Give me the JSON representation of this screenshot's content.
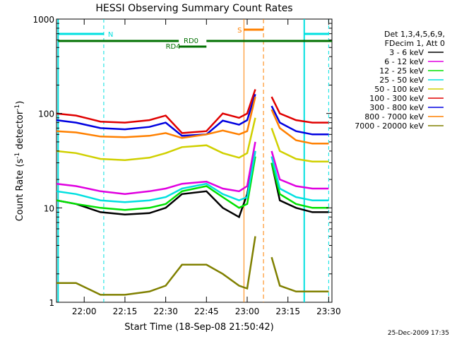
{
  "chart_data": {
    "type": "line",
    "title": "HESSI Observing Summary Count Rates",
    "xlabel": "Start Time (18-Sep-08 21:50:42)",
    "ylabel_main": "Count Rate (s",
    "ylabel_sup1": "-1",
    "ylabel_mid": " detector",
    "ylabel_sup2": "-1",
    "ylabel_end": ")",
    "yscale": "log",
    "ylim": [
      1,
      1000
    ],
    "xlim_minutes": [
      21.83,
      23.52
    ],
    "x_ticks": [
      "22:00",
      "22:15",
      "22:30",
      "22:45",
      "23:00",
      "23:15",
      "23:30"
    ],
    "x_tick_values_hours": [
      22.0,
      22.25,
      22.5,
      22.75,
      23.0,
      23.25,
      23.5
    ],
    "y_ticks": [
      "1",
      "10",
      "100",
      "1000"
    ],
    "y_tick_values": [
      1,
      10,
      100,
      1000
    ],
    "grid": false,
    "legend_position": "right",
    "legend_header": [
      "Det 1,3,4,5,6,9,",
      "FDecim 1, Att 0"
    ],
    "series": [
      {
        "name": "3 - 6 keV",
        "color": "#000000",
        "x": [
          21.83,
          21.95,
          22.1,
          22.25,
          22.4,
          22.5,
          22.6,
          22.75,
          22.85,
          22.95,
          23.0,
          23.05
        ],
        "values": [
          12,
          11,
          9,
          8.5,
          8.8,
          10,
          14,
          15,
          10,
          8,
          14,
          40
        ]
      },
      {
        "name": "6 - 12 keV",
        "color": "#e000e0",
        "x": [
          21.83,
          21.95,
          22.1,
          22.25,
          22.4,
          22.5,
          22.6,
          22.75,
          22.85,
          22.95,
          23.0,
          23.05
        ],
        "values": [
          18,
          17,
          15,
          14,
          15,
          16,
          18,
          19,
          16,
          15,
          17,
          50
        ]
      },
      {
        "name": "12 - 25 keV",
        "color": "#00e000",
        "x": [
          21.83,
          21.95,
          22.1,
          22.25,
          22.4,
          22.5,
          22.6,
          22.75,
          22.85,
          22.95,
          23.0,
          23.05
        ],
        "values": [
          12,
          11,
          10,
          9.5,
          10,
          11,
          15,
          17,
          13,
          10,
          11,
          35
        ]
      },
      {
        "name": "25 - 50 keV",
        "color": "#00e0e0",
        "x": [
          21.83,
          21.95,
          22.1,
          22.25,
          22.4,
          22.5,
          22.6,
          22.75,
          22.85,
          22.95,
          23.0,
          23.05
        ],
        "values": [
          15,
          14,
          12,
          11.5,
          12,
          13,
          16,
          18,
          14,
          12,
          13,
          40
        ]
      },
      {
        "name": "50 - 100 keV",
        "color": "#d0d000",
        "x": [
          21.83,
          21.95,
          22.1,
          22.25,
          22.4,
          22.5,
          22.6,
          22.75,
          22.85,
          22.95,
          23.0,
          23.05
        ],
        "values": [
          40,
          38,
          33,
          32,
          34,
          38,
          44,
          46,
          38,
          34,
          38,
          90
        ]
      },
      {
        "name": "100 - 300 keV",
        "color": "#e00000",
        "x": [
          21.83,
          21.95,
          22.1,
          22.25,
          22.4,
          22.5,
          22.6,
          22.75,
          22.85,
          22.95,
          23.0,
          23.05
        ],
        "values": [
          100,
          95,
          82,
          80,
          85,
          95,
          62,
          65,
          100,
          90,
          100,
          180
        ]
      },
      {
        "name": "300 - 800 keV",
        "color": "#0000e0",
        "x": [
          21.83,
          21.95,
          22.1,
          22.25,
          22.4,
          22.5,
          22.6,
          22.75,
          22.85,
          22.95,
          23.0,
          23.05
        ],
        "values": [
          85,
          80,
          70,
          68,
          72,
          80,
          58,
          60,
          84,
          76,
          85,
          160
        ]
      },
      {
        "name": "800 - 7000 keV",
        "color": "#ff8000",
        "x": [
          21.83,
          21.95,
          22.1,
          22.25,
          22.4,
          22.5,
          22.6,
          22.75,
          22.85,
          22.95,
          23.0,
          23.05
        ],
        "values": [
          65,
          63,
          57,
          56,
          58,
          62,
          55,
          60,
          66,
          60,
          65,
          150
        ]
      },
      {
        "name": "7000 - 20000 keV",
        "color": "#808000",
        "x": [
          21.83,
          21.95,
          22.1,
          22.25,
          22.4,
          22.5,
          22.6,
          22.75,
          22.85,
          22.95,
          23.0,
          23.05
        ],
        "values": [
          1.6,
          1.6,
          1.2,
          1.2,
          1.3,
          1.5,
          2.5,
          2.5,
          2,
          1.5,
          1.4,
          5
        ]
      }
    ],
    "post_flare_series_tail": {
      "x": [
        23.15,
        23.2,
        23.3,
        23.4,
        23.5
      ],
      "values_by_series": [
        [
          30,
          12,
          10,
          9,
          9
        ],
        [
          40,
          20,
          17,
          16,
          16
        ],
        [
          30,
          14,
          11,
          10,
          10
        ],
        [
          35,
          16,
          13,
          12,
          12
        ],
        [
          70,
          40,
          33,
          31,
          31
        ],
        [
          150,
          100,
          85,
          80,
          80
        ],
        [
          120,
          80,
          65,
          60,
          60
        ],
        [
          110,
          70,
          52,
          48,
          48
        ],
        [
          3,
          1.5,
          1.3,
          1.3,
          1.3
        ]
      ]
    },
    "annotations": [
      {
        "text": "N",
        "color": "#00e0e0"
      },
      {
        "text": "RD0",
        "color": "#007000"
      },
      {
        "text": "RD4",
        "color": "#007000"
      },
      {
        "text": "S",
        "color": "#ff8000"
      }
    ],
    "footer_timestamp": "25-Dec-2009 17:35"
  }
}
